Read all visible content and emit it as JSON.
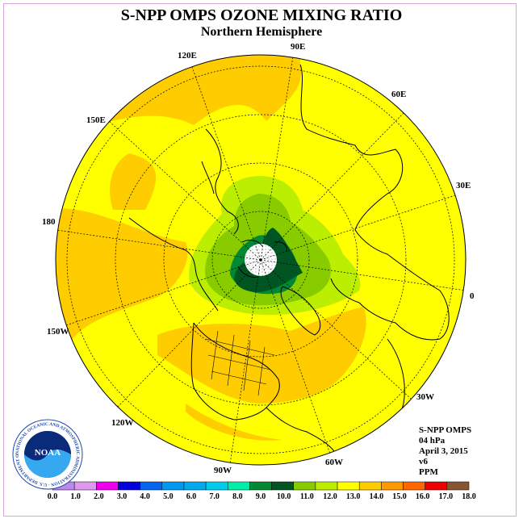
{
  "header": {
    "title": "S-NPP OMPS OZONE MIXING RATIO",
    "subtitle": "Northern Hemisphere"
  },
  "map": {
    "projection": "north polar stereographic",
    "longitude_labels": [
      "90E",
      "60E",
      "30E",
      "0",
      "30W",
      "60W",
      "90W",
      "120W",
      "150W",
      "180",
      "150E",
      "120E"
    ]
  },
  "info": {
    "instrument": "S-NPP OMPS",
    "level": "04 hPa",
    "date": "April 3, 2015",
    "version": "v6",
    "units": "PPM"
  },
  "legend": {
    "ticks": [
      "0.0",
      "1.0",
      "2.0",
      "3.0",
      "4.0",
      "5.0",
      "6.0",
      "7.0",
      "8.0",
      "9.0",
      "10.0",
      "11.0",
      "12.0",
      "13.0",
      "14.0",
      "15.0",
      "16.0",
      "17.0",
      "18.0"
    ],
    "colors": [
      "#bb88ee",
      "#dd99ee",
      "#ee00ee",
      "#0000dd",
      "#0066ee",
      "#0099ee",
      "#00aaee",
      "#00ccee",
      "#00eeaa",
      "#008833",
      "#005522",
      "#88cc00",
      "#bbee00",
      "#ffff00",
      "#ffcc00",
      "#ff9900",
      "#ff6600",
      "#ee0000",
      "#885533"
    ]
  },
  "logo": {
    "name": "NOAA",
    "ring_text": "NATIONAL OCEANIC AND ATMOSPHERIC ADMINISTRATION · U.S. DEPARTMENT OF COMMERCE"
  }
}
